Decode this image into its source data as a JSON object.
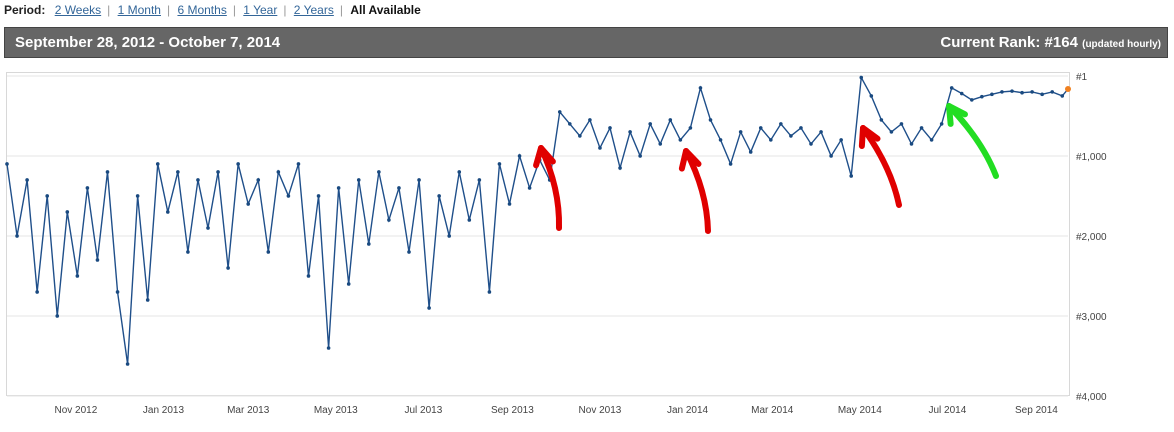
{
  "period": {
    "label": "Period:",
    "options": [
      "2 Weeks",
      "1 Month",
      "6 Months",
      "1 Year",
      "2 Years",
      "All Available"
    ],
    "active": "All Available"
  },
  "header": {
    "date_range": "September 28, 2012 - October 7, 2014",
    "rank_label": "Current Rank: #164",
    "rank_note": "(updated hourly)"
  },
  "colors": {
    "line": "#1f4f8a",
    "marker": "#1a4a80",
    "last_point": "#f08020",
    "red_arrow": "#e00000",
    "green_arrow": "#22dd22",
    "header_bg": "#666666"
  },
  "chart_data": {
    "type": "line",
    "y_inverted": true,
    "ylim": [
      4000,
      1
    ],
    "y_ticks": [
      "#1",
      "#1,000",
      "#2,000",
      "#3,000",
      "#4,000"
    ],
    "y_tick_values": [
      1,
      1000,
      2000,
      3000,
      4000
    ],
    "x_ticks": [
      "Nov 2012",
      "Jan 2013",
      "Mar 2013",
      "May 2013",
      "Jul 2013",
      "Sep 2013",
      "Nov 2013",
      "Jan 2014",
      "Mar 2014",
      "May 2014",
      "Jul 2014",
      "Sep 2014"
    ],
    "xlim": [
      "2012-09-28",
      "2014-10-07"
    ],
    "grid": true,
    "series": [
      {
        "points": [
          [
            "2012-09-28",
            1100
          ],
          [
            "2012-10-05",
            2000
          ],
          [
            "2012-10-12",
            1300
          ],
          [
            "2012-10-19",
            2700
          ],
          [
            "2012-10-26",
            1500
          ],
          [
            "2012-11-02",
            3000
          ],
          [
            "2012-11-09",
            1700
          ],
          [
            "2012-11-16",
            2500
          ],
          [
            "2012-11-23",
            1400
          ],
          [
            "2012-11-30",
            2300
          ],
          [
            "2012-12-07",
            1200
          ],
          [
            "2012-12-14",
            2700
          ],
          [
            "2012-12-21",
            3600
          ],
          [
            "2012-12-28",
            1500
          ],
          [
            "2013-01-04",
            2800
          ],
          [
            "2013-01-11",
            1100
          ],
          [
            "2013-01-18",
            1700
          ],
          [
            "2013-01-25",
            1200
          ],
          [
            "2013-02-01",
            2200
          ],
          [
            "2013-02-08",
            1300
          ],
          [
            "2013-02-15",
            1900
          ],
          [
            "2013-02-22",
            1200
          ],
          [
            "2013-03-01",
            2400
          ],
          [
            "2013-03-08",
            1100
          ],
          [
            "2013-03-15",
            1600
          ],
          [
            "2013-03-22",
            1300
          ],
          [
            "2013-03-29",
            2200
          ],
          [
            "2013-04-05",
            1200
          ],
          [
            "2013-04-12",
            1500
          ],
          [
            "2013-04-19",
            1100
          ],
          [
            "2013-04-26",
            2500
          ],
          [
            "2013-05-03",
            1500
          ],
          [
            "2013-05-10",
            3400
          ],
          [
            "2013-05-17",
            1400
          ],
          [
            "2013-05-24",
            2600
          ],
          [
            "2013-05-31",
            1300
          ],
          [
            "2013-06-07",
            2100
          ],
          [
            "2013-06-14",
            1200
          ],
          [
            "2013-06-21",
            1800
          ],
          [
            "2013-06-28",
            1400
          ],
          [
            "2013-07-05",
            2200
          ],
          [
            "2013-07-12",
            1300
          ],
          [
            "2013-07-19",
            2900
          ],
          [
            "2013-07-26",
            1500
          ],
          [
            "2013-08-02",
            2000
          ],
          [
            "2013-08-09",
            1200
          ],
          [
            "2013-08-16",
            1800
          ],
          [
            "2013-08-23",
            1300
          ],
          [
            "2013-08-30",
            2700
          ],
          [
            "2013-09-06",
            1100
          ],
          [
            "2013-09-13",
            1600
          ],
          [
            "2013-09-20",
            1000
          ],
          [
            "2013-09-27",
            1400
          ],
          [
            "2013-10-04",
            1050
          ],
          [
            "2013-10-11",
            1300
          ],
          [
            "2013-10-18",
            450
          ],
          [
            "2013-10-25",
            600
          ],
          [
            "2013-11-01",
            750
          ],
          [
            "2013-11-08",
            550
          ],
          [
            "2013-11-15",
            900
          ],
          [
            "2013-11-22",
            650
          ],
          [
            "2013-11-29",
            1150
          ],
          [
            "2013-12-06",
            700
          ],
          [
            "2013-12-13",
            1000
          ],
          [
            "2013-12-20",
            600
          ],
          [
            "2013-12-27",
            850
          ],
          [
            "2014-01-03",
            550
          ],
          [
            "2014-01-10",
            800
          ],
          [
            "2014-01-17",
            650
          ],
          [
            "2014-01-24",
            150
          ],
          [
            "2014-01-31",
            550
          ],
          [
            "2014-02-07",
            800
          ],
          [
            "2014-02-14",
            1100
          ],
          [
            "2014-02-21",
            700
          ],
          [
            "2014-02-28",
            950
          ],
          [
            "2014-03-07",
            650
          ],
          [
            "2014-03-14",
            800
          ],
          [
            "2014-03-21",
            600
          ],
          [
            "2014-03-28",
            750
          ],
          [
            "2014-04-04",
            650
          ],
          [
            "2014-04-11",
            850
          ],
          [
            "2014-04-18",
            700
          ],
          [
            "2014-04-25",
            1000
          ],
          [
            "2014-05-02",
            800
          ],
          [
            "2014-05-09",
            1250
          ],
          [
            "2014-05-16",
            20
          ],
          [
            "2014-05-23",
            250
          ],
          [
            "2014-05-30",
            550
          ],
          [
            "2014-06-06",
            700
          ],
          [
            "2014-06-13",
            600
          ],
          [
            "2014-06-20",
            850
          ],
          [
            "2014-06-27",
            650
          ],
          [
            "2014-07-04",
            800
          ],
          [
            "2014-07-11",
            600
          ],
          [
            "2014-07-18",
            150
          ],
          [
            "2014-07-25",
            220
          ],
          [
            "2014-08-01",
            300
          ],
          [
            "2014-08-08",
            260
          ],
          [
            "2014-08-15",
            230
          ],
          [
            "2014-08-22",
            200
          ],
          [
            "2014-08-29",
            190
          ],
          [
            "2014-09-05",
            210
          ],
          [
            "2014-09-12",
            200
          ],
          [
            "2014-09-19",
            230
          ],
          [
            "2014-09-26",
            200
          ],
          [
            "2014-10-03",
            250
          ],
          [
            "2014-10-07",
            164
          ]
        ]
      }
    ]
  }
}
